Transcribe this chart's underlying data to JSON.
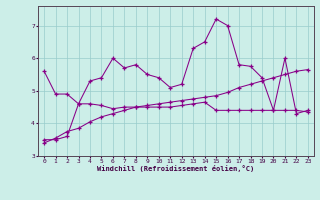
{
  "xlabel": "Windchill (Refroidissement éolien,°C)",
  "background_color": "#cceee8",
  "line_color": "#880088",
  "xlim": [
    -0.5,
    23.5
  ],
  "ylim": [
    3.0,
    7.6
  ],
  "yticks": [
    3,
    4,
    5,
    6,
    7
  ],
  "xticks": [
    0,
    1,
    2,
    3,
    4,
    5,
    6,
    7,
    8,
    9,
    10,
    11,
    12,
    13,
    14,
    15,
    16,
    17,
    18,
    19,
    20,
    21,
    22,
    23
  ],
  "series": [
    [
      5.6,
      4.9,
      4.9,
      4.6,
      5.3,
      5.4,
      6.0,
      5.7,
      5.8,
      5.5,
      5.4,
      5.1,
      5.2,
      6.3,
      6.5,
      7.2,
      7.0,
      5.8,
      5.75,
      5.4,
      4.4,
      6.0,
      4.3,
      4.4
    ],
    [
      3.5,
      3.5,
      3.6,
      4.6,
      4.6,
      4.55,
      4.45,
      4.5,
      4.5,
      4.5,
      4.5,
      4.5,
      4.55,
      4.6,
      4.65,
      4.4,
      4.4,
      4.4,
      4.4,
      4.4,
      4.4,
      4.4,
      4.4,
      4.35
    ],
    [
      3.4,
      3.55,
      3.75,
      3.85,
      4.05,
      4.2,
      4.3,
      4.4,
      4.5,
      4.55,
      4.6,
      4.65,
      4.7,
      4.75,
      4.8,
      4.85,
      4.95,
      5.1,
      5.2,
      5.3,
      5.4,
      5.5,
      5.6,
      5.65
    ]
  ]
}
